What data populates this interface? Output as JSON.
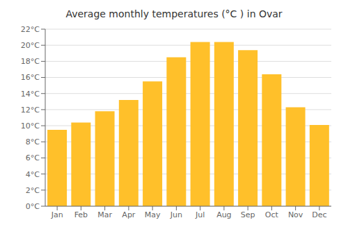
{
  "chart_data": {
    "type": "bar",
    "title": "Average monthly temperatures (°C ) in Ovar",
    "categories": [
      "Jan",
      "Feb",
      "Mar",
      "Apr",
      "May",
      "Jun",
      "Jul",
      "Aug",
      "Sep",
      "Oct",
      "Nov",
      "Dec"
    ],
    "values": [
      9.5,
      10.4,
      11.8,
      13.2,
      15.5,
      18.5,
      20.4,
      20.4,
      19.4,
      16.4,
      12.3,
      10.1
    ],
    "color": "#FFC02A",
    "ylim": [
      0,
      22
    ],
    "yticks": [
      {
        "value": 0,
        "label": "0°C"
      },
      {
        "value": 2,
        "label": "2°C"
      },
      {
        "value": 4,
        "label": "4°C"
      },
      {
        "value": 6,
        "label": "6°C"
      },
      {
        "value": 8,
        "label": "8°C"
      },
      {
        "value": 10,
        "label": "10°C"
      },
      {
        "value": 12,
        "label": "12°C"
      },
      {
        "value": 14,
        "label": "14°C"
      },
      {
        "value": 16,
        "label": "16°C"
      },
      {
        "value": 18,
        "label": "18°C"
      },
      {
        "value": 20,
        "label": "20°C"
      },
      {
        "value": 22,
        "label": "22°C"
      }
    ],
    "grid": true
  }
}
